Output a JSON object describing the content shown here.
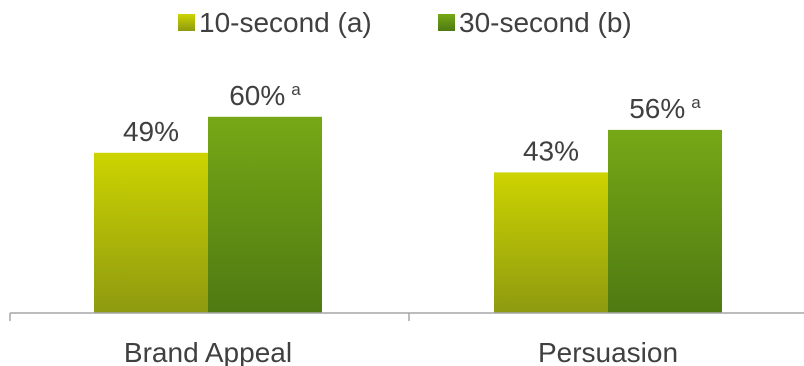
{
  "chart_data": {
    "type": "bar",
    "title": "",
    "xlabel": "",
    "ylabel": "",
    "categories": [
      "Brand Appeal",
      "Persuasion"
    ],
    "series": [
      {
        "name": "10-second (a)",
        "values": [
          49,
          43
        ],
        "labels": [
          "49%",
          "43%"
        ],
        "sup": [
          "",
          ""
        ],
        "color_top": "#cdd400",
        "color_bottom": "#8e9a10"
      },
      {
        "name": "30-second (b)",
        "values": [
          60,
          56
        ],
        "labels": [
          "60%",
          "56%"
        ],
        "sup": [
          "a",
          "a"
        ],
        "color_top": "#76a816",
        "color_bottom": "#4e7a12"
      }
    ],
    "ylim": [
      0,
      100
    ],
    "grid": false,
    "legend_position": "top-center"
  }
}
